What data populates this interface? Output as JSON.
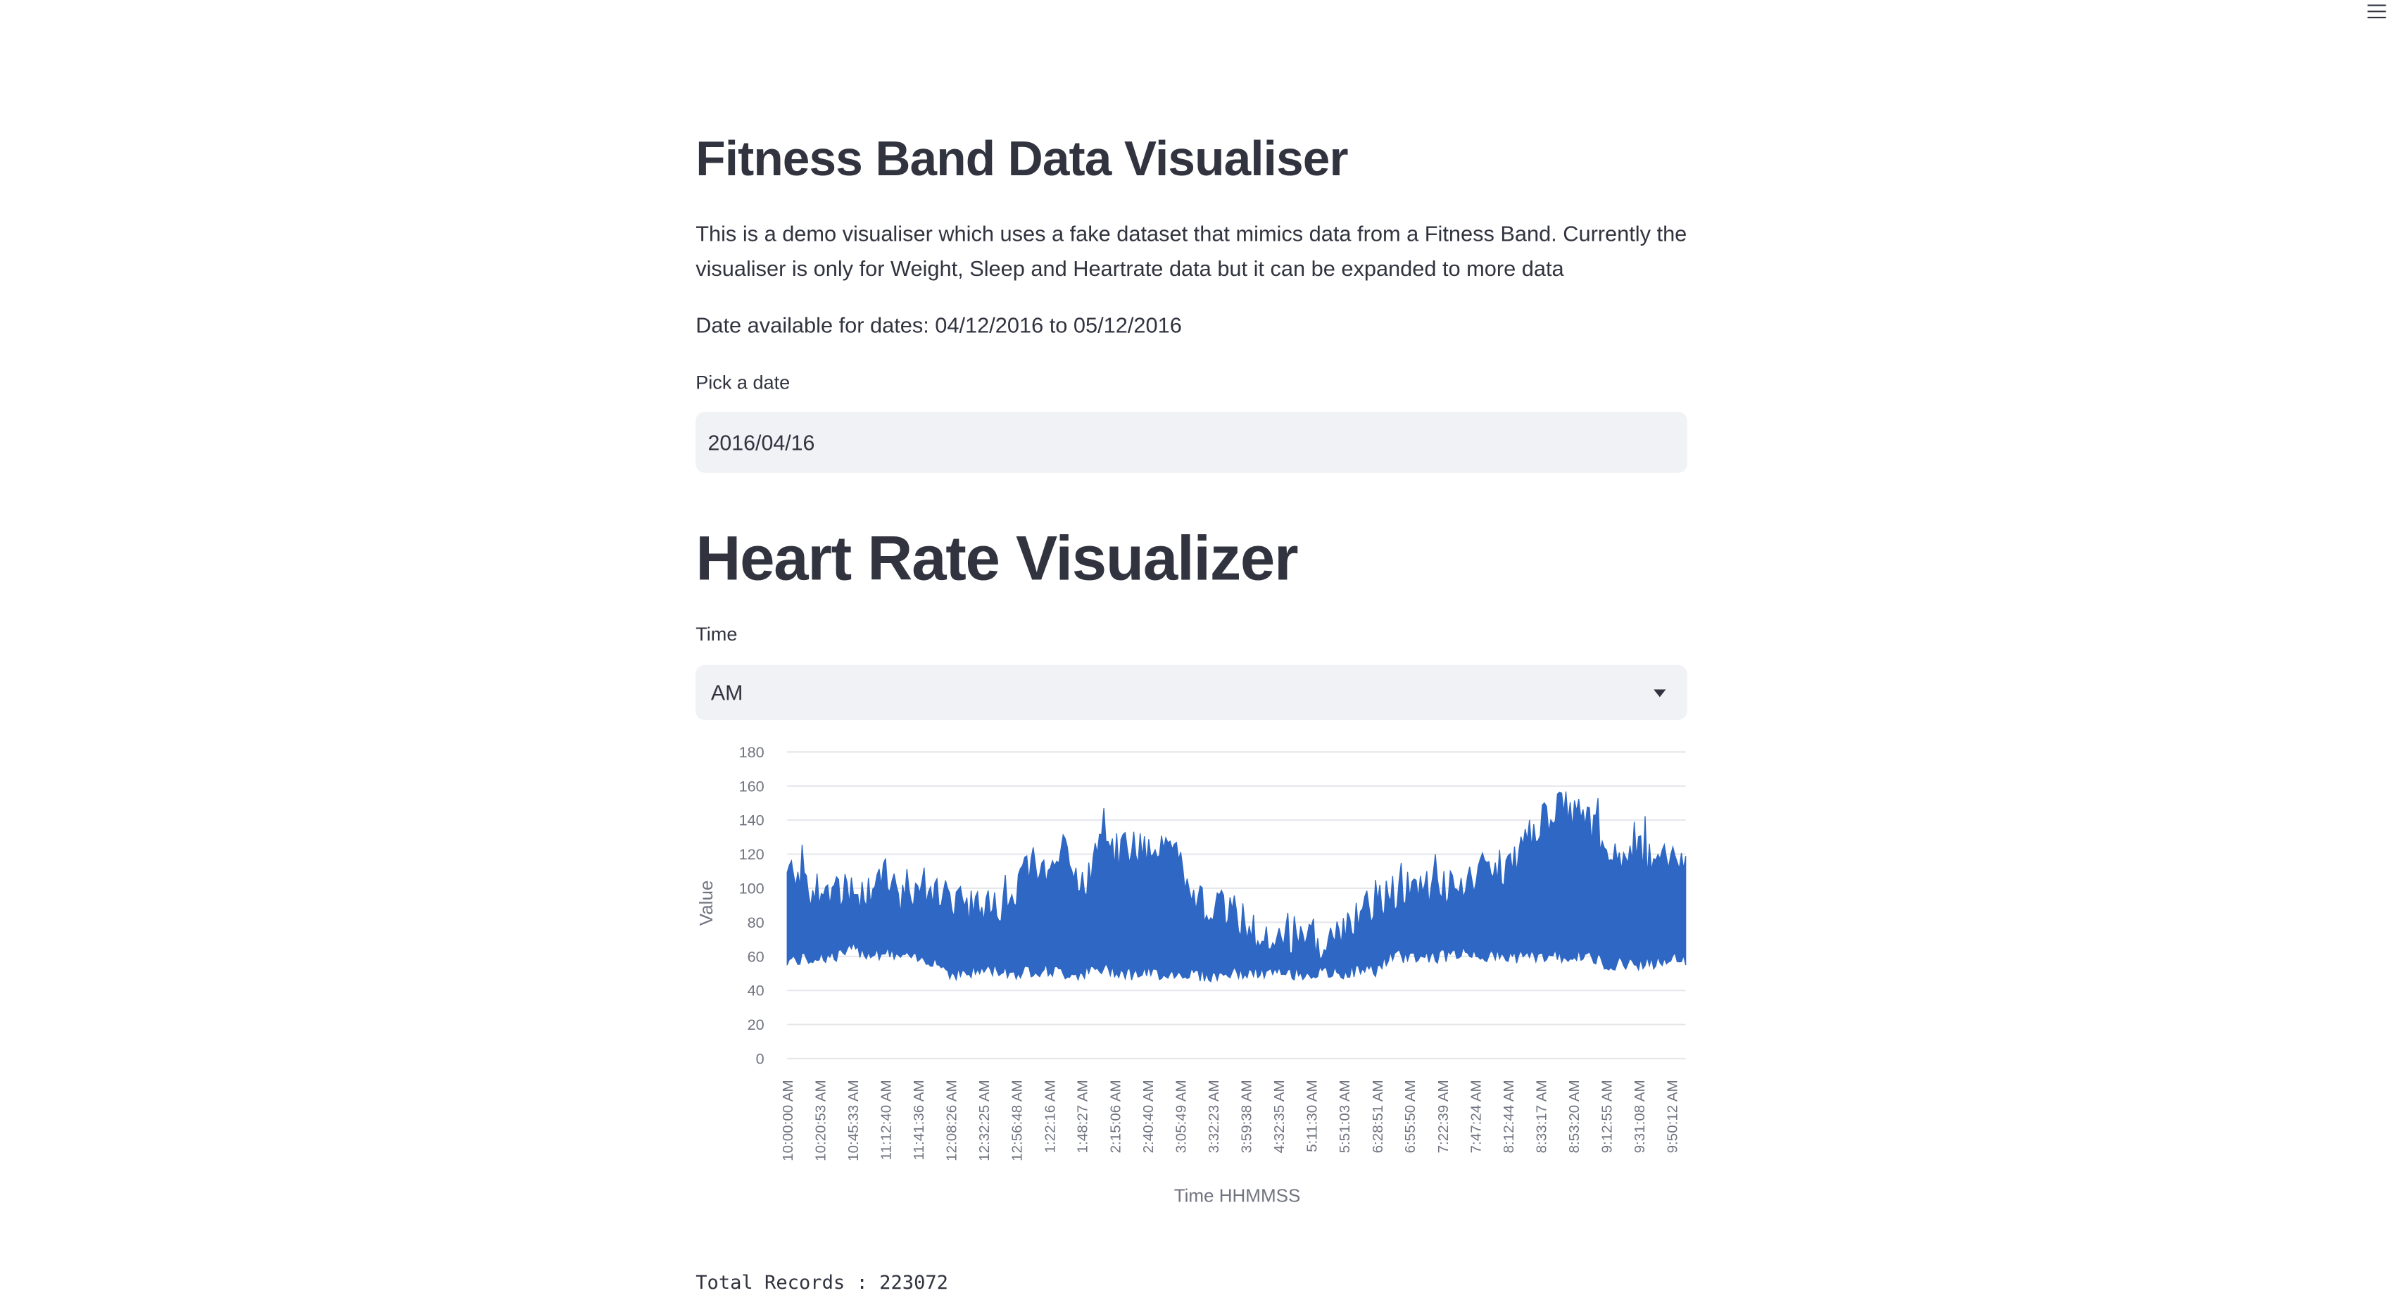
{
  "app": {
    "title": "Fitness Band Data Visualiser",
    "description": "This is a demo visualiser which uses a fake dataset that mimics data from a Fitness Band. Currently the visualiser is only for Weight, Sleep and Heartrate data but it can be expanded to more data",
    "availability": "Date available for dates: 04/12/2016 to 05/12/2016"
  },
  "date_picker": {
    "label": "Pick a date",
    "value": "2016/04/16"
  },
  "section": {
    "title": "Heart Rate Visualizer"
  },
  "time_select": {
    "label": "Time",
    "value": "AM"
  },
  "footer": {
    "total_records": "Total Records : 223072"
  },
  "colors": {
    "series": "#2e67c4",
    "grid": "#e6e7eb",
    "axis_text": "#717480"
  },
  "icons": {
    "menu": "hamburger-menu-icon",
    "dropdown": "chevron-down-icon"
  },
  "chart_data": {
    "type": "area",
    "xlabel": "Time HHMMSS",
    "ylabel": "Value",
    "ylim": [
      0,
      180
    ],
    "yticks": [
      0,
      20,
      40,
      60,
      80,
      100,
      120,
      140,
      160,
      180
    ],
    "grid": true,
    "x_tick_labels": [
      "10:00:00 AM",
      "10:20:53 AM",
      "10:45:33 AM",
      "11:12:40 AM",
      "11:41:36 AM",
      "12:08:26 AM",
      "12:32:25 AM",
      "12:56:48 AM",
      "1:22:16 AM",
      "1:48:27 AM",
      "2:15:06 AM",
      "2:40:40 AM",
      "3:05:49 AM",
      "3:32:23 AM",
      "3:59:38 AM",
      "4:32:35 AM",
      "5:11:30 AM",
      "5:51:03 AM",
      "6:28:51 AM",
      "6:55:50 AM",
      "7:22:39 AM",
      "7:47:24 AM",
      "8:12:44 AM",
      "8:33:17 AM",
      "8:53:20 AM",
      "9:12:55 AM",
      "9:31:08 AM",
      "9:50:12 AM"
    ],
    "series": [
      {
        "upper": [
          120,
          112,
          110,
          112,
          106,
          108,
          118,
          104,
          114,
          112,
          104,
          100,
          102,
          100,
          104,
          132,
          112,
          140,
          108,
          134,
          132,
          136,
          136,
          134,
          128,
          104,
          100,
          98,
          92,
          82,
          78,
          84,
          84,
          78,
          82,
          96,
          102,
          108,
          112,
          110,
          112,
          114,
          116,
          120,
          118,
          136,
          146,
          160,
          156,
          150,
          142,
          126,
          134,
          124,
          130,
          122
        ],
        "lower": [
          54,
          54,
          56,
          56,
          60,
          58,
          58,
          56,
          54,
          54,
          46,
          46,
          48,
          48,
          46,
          48,
          48,
          46,
          46,
          48,
          48,
          46,
          46,
          46,
          46,
          46,
          44,
          46,
          46,
          46,
          46,
          46,
          46,
          46,
          46,
          48,
          48,
          56,
          56,
          56,
          56,
          58,
          58,
          56,
          56,
          56,
          56,
          56,
          56,
          56,
          52,
          52,
          52,
          52,
          54,
          54
        ]
      }
    ]
  }
}
